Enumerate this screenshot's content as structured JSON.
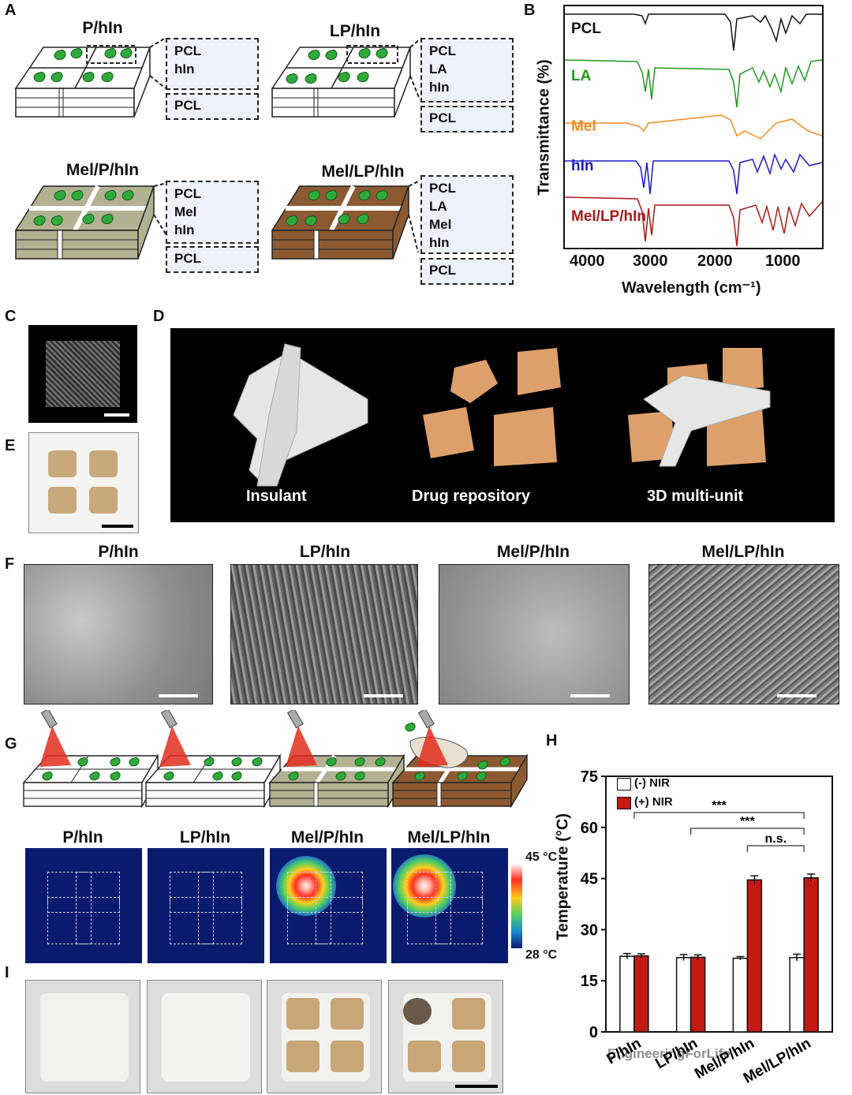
{
  "panels": {
    "A": "A",
    "B": "B",
    "C": "C",
    "D": "D",
    "E": "E",
    "F": "F",
    "G": "G",
    "H": "H",
    "I": "I"
  },
  "panel_a": {
    "groups": [
      {
        "title": "P/hIn",
        "top_box": [
          "PCL",
          "hIn"
        ],
        "bottom_box": "PCL"
      },
      {
        "title": "LP/hIn",
        "top_box": [
          "PCL",
          "LA",
          "hIn"
        ],
        "bottom_box": "PCL"
      },
      {
        "title": "Mel/P/hIn",
        "top_box": [
          "PCL",
          "Mel",
          "hIn"
        ],
        "bottom_box": "PCL"
      },
      {
        "title": "Mel/LP/hIn",
        "top_box": [
          "PCL",
          "LA",
          "Mel",
          "hIn"
        ],
        "bottom_box": "PCL"
      }
    ]
  },
  "panel_b": {
    "ylabel": "Transmittance (%)",
    "xlabel": "Wavelength (cm⁻¹)",
    "xticks": [
      "4000",
      "3000",
      "2000",
      "1000"
    ],
    "series": [
      {
        "name": "PCL",
        "color": "#111111"
      },
      {
        "name": "LA",
        "color": "#1e9a1e"
      },
      {
        "name": "Mel",
        "color": "#f08c1e"
      },
      {
        "name": "hIn",
        "color": "#1a1ad0"
      },
      {
        "name": "Mel/LP/hIn",
        "color": "#b01818"
      }
    ]
  },
  "panel_d": {
    "labels": [
      "Insulant",
      "Drug repository",
      "3D multi-unit"
    ]
  },
  "panel_f": {
    "titles": [
      "P/hIn",
      "LP/hIn",
      "Mel/P/hIn",
      "Mel/LP/hIn"
    ]
  },
  "panel_g": {
    "titles": [
      "P/hIn",
      "LP/hIn",
      "Mel/P/hIn",
      "Mel/LP/hIn"
    ],
    "scale_max": "45 °C",
    "scale_min": "28 °C",
    "hot_spot": [
      false,
      false,
      true,
      true
    ]
  },
  "chart_data": {
    "type": "bar",
    "ylabel": "Temperature (°C)",
    "ylim": [
      0,
      75
    ],
    "yticks": [
      0,
      15,
      30,
      45,
      60,
      75
    ],
    "categories": [
      "P/hIn",
      "LP/hIn",
      "Mel/P/hIn",
      "Mel/LP/hIn"
    ],
    "series": [
      {
        "name": "(-) NIR",
        "color": "#ffffff",
        "values": [
          22.2,
          21.8,
          21.6,
          21.8
        ],
        "errors": [
          0.8,
          0.9,
          0.5,
          1.0
        ]
      },
      {
        "name": "(+) NIR",
        "color": "#c41a12",
        "values": [
          22.3,
          21.9,
          44.6,
          45.2
        ],
        "errors": [
          0.6,
          0.7,
          1.2,
          1.1
        ]
      }
    ],
    "significance": [
      {
        "label": "***",
        "from": "P/hIn",
        "to": "Mel/LP/hIn"
      },
      {
        "label": "***",
        "from": "LP/hIn",
        "to": "Mel/LP/hIn"
      },
      {
        "label": "n.s.",
        "from": "Mel/P/hIn",
        "to": "Mel/LP/hIn"
      }
    ],
    "legend_position": "top-left"
  },
  "watermark": "EngineeringForLife"
}
